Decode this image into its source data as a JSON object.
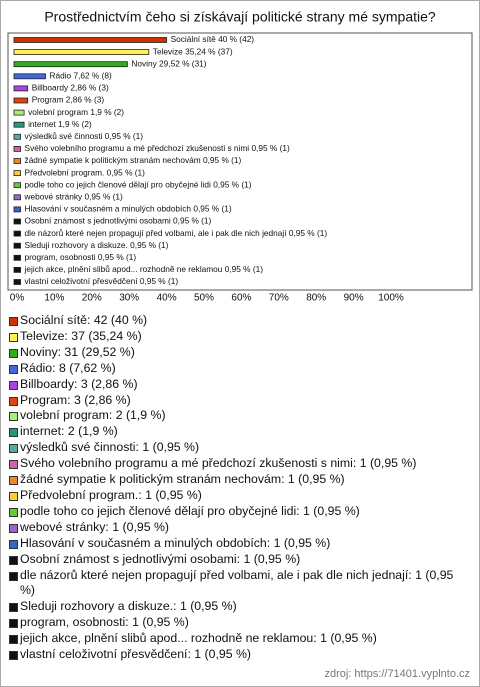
{
  "chart_data": {
    "type": "bar",
    "orientation": "horizontal",
    "title": "Prostřednictvím čeho si získávají politické strany mé sympatie?",
    "values": [
      40,
      35.24,
      29.52,
      7.62,
      2.86,
      2.86,
      1.9,
      1.9,
      0.95,
      0.95,
      0.95,
      0.95,
      0.95,
      0.95,
      0.95,
      0.95,
      0.95,
      0.95,
      0.95,
      0.95,
      0.95
    ],
    "value_labels": [
      "Sociální sítě 40 % (42)",
      "Televize 35,24 % (37)",
      "Noviny 29,52 % (31)",
      "Rádio 7,62 % (8)",
      "Billboardy 2,86 % (3)",
      "Program 2,86 % (3)",
      "volební program 1,9 % (2)",
      "internet 1,9 % (2)",
      "výsledků své činnosti 0,95 % (1)",
      "Svého volebního programu a mé předchozí zkušenosti s nimi 0,95 % (1)",
      "žádné sympatie k politickým stranám nechovám 0,95 % (1)",
      "Předvolební program. 0,95 % (1)",
      "podle toho co jejich členové dělají pro obyčejné lidi 0,95 % (1)",
      "webové stránky 0,95 % (1)",
      "Hlasování v současném a minulých obdobích 0,95 % (1)",
      "Osobní známost s jednotlivými osobami 0,95 % (1)",
      "dle názorů které nejen propagují před volbami, ale i pak dle nich jednají 0,95 % (1)",
      "Sleduji rozhovory a diskuze.  0,95 % (1)",
      "program, osobnosti 0,95 % (1)",
      "jejich akce, plnění slibů apod... rozhodně ne reklamou 0,95 % (1)",
      "vlastní celoživotní přesvědčení 0,95 % (1)"
    ],
    "legend_labels": [
      "Sociální sítě: 42 (40 %)",
      "Televize: 37 (35,24 %)",
      "Noviny: 31 (29,52 %)",
      "Rádio: 8 (7,62 %)",
      "Billboardy: 3 (2,86 %)",
      "Program: 3 (2,86 %)",
      "volební program: 2 (1,9 %)",
      "internet: 2 (1,9 %)",
      "výsledků své činnosti: 1 (0,95 %)",
      "Svého volebního programu a mé předchozí zkušenosti s nimi: 1 (0,95 %)",
      "žádné sympatie k politickým stranám nechovám: 1 (0,95 %)",
      "Předvolební program.: 1 (0,95 %)",
      "podle toho co jejich členové dělají pro obyčejné lidi: 1 (0,95 %)",
      "webové stránky: 1 (0,95 %)",
      "Hlasování v současném a minulých obdobích: 1 (0,95 %)",
      "Osobní známost s jednotlivými osobami: 1 (0,95 %)",
      "dle názorů které nejen propagují před volbami, ale i pak dle nich jednají: 1 (0,95 %)",
      "Sleduji rozhovory a diskuze.: 1 (0,95 %)",
      "program, osobnosti: 1 (0,95 %)",
      "jejich akce, plnění slibů apod... rozhodně ne reklamou: 1 (0,95 %)",
      "vlastní celoživotní přesvědčení: 1 (0,95 %)"
    ],
    "colors": [
      "#cc3300",
      "#ffee55",
      "#33aa22",
      "#4466dd",
      "#aa44dd",
      "#dd4411",
      "#aaee77",
      "#229977",
      "#55aaaa",
      "#cc66aa",
      "#ee8822",
      "#ffcc33",
      "#66cc33",
      "#9966cc",
      "#3366cc",
      "#111111",
      "#111111",
      "#111111",
      "#111111",
      "#111111",
      "#111111"
    ],
    "xlim": [
      0,
      100
    ],
    "xticks": [
      {
        "value": 0,
        "label": "0%"
      },
      {
        "value": 10,
        "label": "10%"
      },
      {
        "value": 20,
        "label": "20%"
      },
      {
        "value": 30,
        "label": "30%"
      },
      {
        "value": 40,
        "label": "40%"
      },
      {
        "value": 50,
        "label": "50%"
      },
      {
        "value": 60,
        "label": "60%"
      },
      {
        "value": 70,
        "label": "70%"
      },
      {
        "value": 80,
        "label": "80%"
      },
      {
        "value": 90,
        "label": "90%"
      },
      {
        "value": 100,
        "label": "100%"
      }
    ]
  },
  "footer": "zdroj: https://71401.vyplnto.cz"
}
